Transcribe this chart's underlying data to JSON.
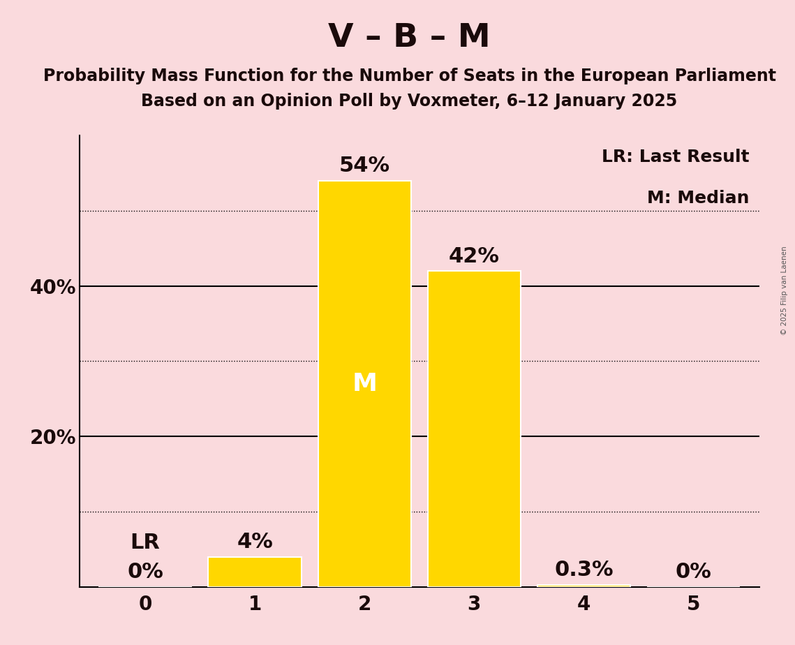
{
  "title": "V – B – M",
  "subtitle1": "Probability Mass Function for the Number of Seats in the European Parliament",
  "subtitle2": "Based on an Opinion Poll by Voxmeter, 6–12 January 2025",
  "categories": [
    0,
    1,
    2,
    3,
    4,
    5
  ],
  "values": [
    0.0,
    4.0,
    54.0,
    42.0,
    0.3,
    0.0
  ],
  "labels": [
    "0%",
    "4%",
    "54%",
    "42%",
    "0.3%",
    "0%"
  ],
  "bar_color": "#FFD700",
  "background_color": "#FADADD",
  "bar_edge_color": "#FFFFFF",
  "text_color": "#1a0a0a",
  "median_bar": 2,
  "median_label": "M",
  "lr_label": "LR",
  "legend_text1": "LR: Last Result",
  "legend_text2": "M: Median",
  "yticks": [
    20,
    40
  ],
  "ytick_labels": [
    "20%",
    "40%"
  ],
  "ylim": [
    0,
    60
  ],
  "copyright_text": "© 2025 Filip van Laenen",
  "solid_yticks": [
    20,
    40
  ],
  "dotted_yticks": [
    10,
    30,
    50
  ],
  "title_fontsize": 34,
  "subtitle_fontsize": 17,
  "bar_label_fontsize": 22,
  "axis_tick_fontsize": 20,
  "legend_fontsize": 18,
  "median_label_fontsize": 26
}
